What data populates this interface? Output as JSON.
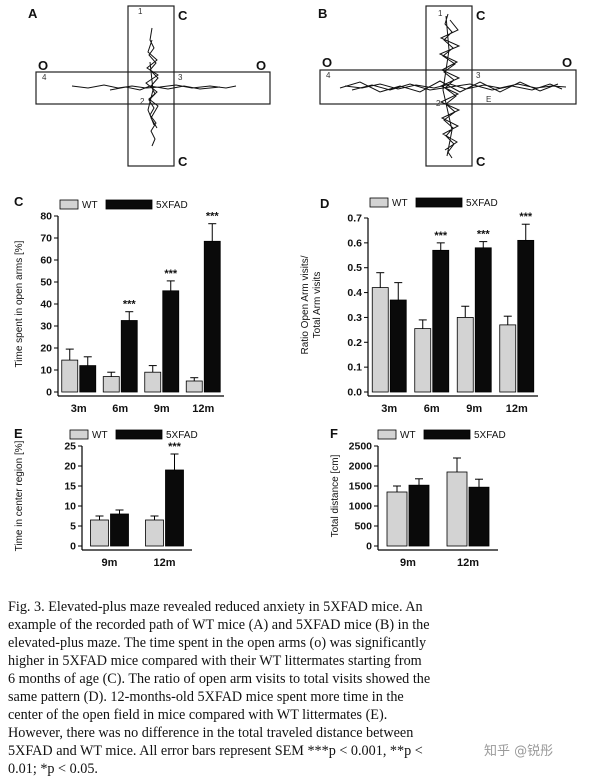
{
  "maze_panels": [
    {
      "letter": "A",
      "arm_labels": [
        "C",
        "O",
        "O",
        "C"
      ],
      "zone_numbers": [
        "1",
        "2",
        "3",
        "4"
      ]
    },
    {
      "letter": "B",
      "arm_labels": [
        "C",
        "O",
        "O",
        "C"
      ],
      "zone_numbers": [
        "1",
        "2",
        "3",
        "4",
        "E"
      ]
    }
  ],
  "colors": {
    "wt": "#d3d3d3",
    "fivexfad": "#0a0a0a",
    "axis": "#000000",
    "track": "#111111"
  },
  "chart_data": [
    {
      "panel": "C",
      "type": "bar",
      "ylabel": "Time spent in open arms [%]",
      "categories": [
        "3m",
        "6m",
        "9m",
        "12m"
      ],
      "ylim": [
        0,
        80
      ],
      "yticks": [
        0,
        10,
        20,
        30,
        40,
        50,
        60,
        70,
        80
      ],
      "legend": [
        "WT",
        "5XFAD"
      ],
      "series": [
        {
          "name": "WT",
          "values": [
            14.5,
            7,
            9,
            5
          ],
          "errors": [
            5,
            2,
            3,
            1.5
          ]
        },
        {
          "name": "5XFAD",
          "values": [
            12,
            32.5,
            46,
            68.5
          ],
          "errors": [
            4,
            4,
            4.5,
            8
          ]
        }
      ],
      "significance": [
        "",
        "***",
        "***",
        "***"
      ]
    },
    {
      "panel": "D",
      "type": "bar",
      "ylabel": "Ratio Open Arm visits/\nTotal Arm visits",
      "categories": [
        "3m",
        "6m",
        "9m",
        "12m"
      ],
      "ylim": [
        0,
        0.7
      ],
      "yticks": [
        "0.0",
        "0.1",
        "0.2",
        "0.3",
        "0.4",
        "0.5",
        "0.6",
        "0.7"
      ],
      "legend": [
        "WT",
        "5XFAD"
      ],
      "series": [
        {
          "name": "WT",
          "values": [
            0.42,
            0.255,
            0.3,
            0.27
          ],
          "errors": [
            0.06,
            0.035,
            0.045,
            0.035
          ]
        },
        {
          "name": "5XFAD",
          "values": [
            0.37,
            0.57,
            0.58,
            0.61
          ],
          "errors": [
            0.07,
            0.03,
            0.025,
            0.065
          ]
        }
      ],
      "significance": [
        "",
        "***",
        "***",
        "***"
      ]
    },
    {
      "panel": "E",
      "type": "bar",
      "ylabel": "Time in center region [%]",
      "categories": [
        "9m",
        "12m"
      ],
      "ylim": [
        0,
        25
      ],
      "yticks": [
        0,
        5,
        10,
        15,
        20,
        25
      ],
      "legend": [
        "WT",
        "5XFAD"
      ],
      "series": [
        {
          "name": "WT",
          "values": [
            6.5,
            6.5
          ],
          "errors": [
            1,
            1
          ]
        },
        {
          "name": "5XFAD",
          "values": [
            8,
            19
          ],
          "errors": [
            1,
            4
          ]
        }
      ],
      "significance": [
        "",
        "***"
      ]
    },
    {
      "panel": "F",
      "type": "bar",
      "ylabel": "Total distance [cm]",
      "categories": [
        "9m",
        "12m"
      ],
      "ylim": [
        0,
        2500
      ],
      "yticks": [
        0,
        500,
        1000,
        1500,
        2000,
        2500
      ],
      "legend": [
        "WT",
        "5XFAD"
      ],
      "series": [
        {
          "name": "WT",
          "values": [
            1350,
            1850
          ],
          "errors": [
            150,
            350
          ]
        },
        {
          "name": "5XFAD",
          "values": [
            1520,
            1470
          ],
          "errors": [
            160,
            200
          ]
        }
      ],
      "significance": [
        "",
        ""
      ]
    }
  ],
  "caption": {
    "lines": [
      "Fig. 3. Elevated-plus maze revealed reduced anxiety in 5XFAD mice. An",
      "example of the recorded path of WT mice (A) and 5XFAD mice (B) in the",
      "elevated-plus maze. The time spent in the open arms (o) was significantly",
      "higher in 5XFAD mice compared with their WT littermates starting from",
      "6 months of age (C). The ratio of open arm visits to total visits showed the",
      "same pattern (D). 12-months-old 5XFAD mice spent more time in the",
      "center of the open field in mice compared with WT littermates (E).",
      "However, there was no difference in the total traveled distance between",
      "5XFAD and WT mice. All error bars represent SEM ***p < 0.001, **p <",
      "0.01; *p < 0.05."
    ]
  },
  "watermark": "知乎 @锐彤"
}
